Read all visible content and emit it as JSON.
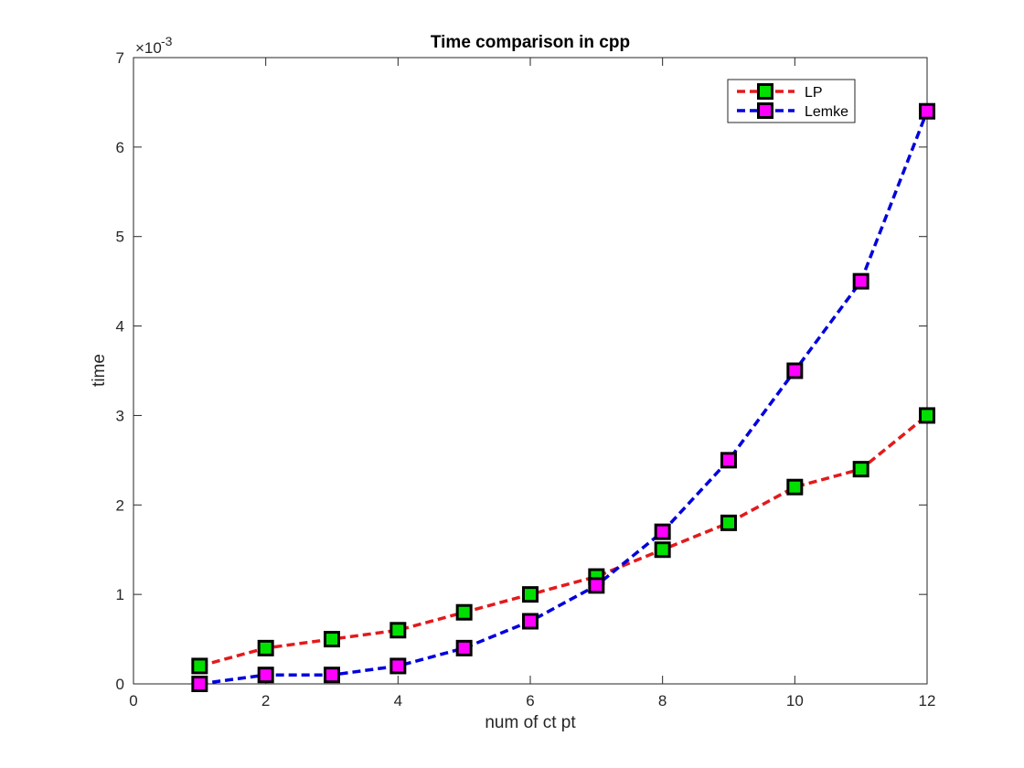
{
  "chart_data": {
    "type": "line",
    "title": "Time comparison in cpp",
    "xlabel": "num of ct pt",
    "ylabel": "time",
    "exponent_label": "×10",
    "exponent_power": "-3",
    "xlim": [
      0,
      12
    ],
    "ylim": [
      0,
      0.007
    ],
    "xticks": [
      "0",
      "2",
      "4",
      "6",
      "8",
      "10",
      "12"
    ],
    "yticks": [
      "0",
      "1",
      "2",
      "3",
      "4",
      "5",
      "6",
      "7"
    ],
    "grid": false,
    "legend_position": "top-right",
    "x": [
      1,
      2,
      3,
      4,
      5,
      6,
      7,
      8,
      9,
      10,
      11,
      12
    ],
    "series": [
      {
        "name": "LP",
        "line_color": "#e31a1c",
        "marker_color": "#00e000",
        "values": [
          0.0002,
          0.0004,
          0.0005,
          0.0006,
          0.0008,
          0.001,
          0.0012,
          0.0015,
          0.0018,
          0.0022,
          0.0024,
          0.003
        ]
      },
      {
        "name": "Lemke",
        "line_color": "#0000dd",
        "marker_color": "#ff00ff",
        "values": [
          0.0,
          0.0001,
          0.0001,
          0.0002,
          0.0004,
          0.0007,
          0.0011,
          0.0017,
          0.0025,
          0.0035,
          0.0045,
          0.0064
        ]
      }
    ]
  }
}
